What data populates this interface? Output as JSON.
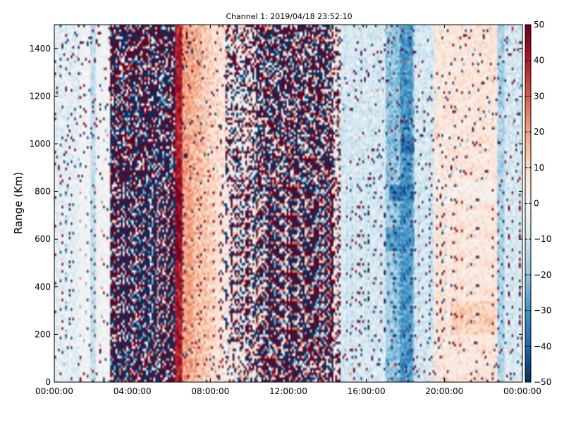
{
  "chart_data": {
    "type": "heatmap",
    "title": "Channel 1: 2019/04/18 23:52:10",
    "xlabel": "",
    "ylabel": "Range (Km)",
    "x_ticks": [
      "00:00:00",
      "04:00:00",
      "08:00:00",
      "12:00:00",
      "16:00:00",
      "20:00:00",
      "00:00:00"
    ],
    "x_range_hours": [
      0,
      24
    ],
    "y_ticks": [
      "0",
      "200",
      "400",
      "600",
      "800",
      "1000",
      "1200",
      "1400"
    ],
    "y_range": [
      0,
      1500
    ],
    "colorbar": {
      "range": [
        -50,
        50
      ],
      "ticks": [
        "50",
        "40",
        "30",
        "20",
        "10",
        "0",
        "−10",
        "−20",
        "−30",
        "−40",
        "−50"
      ],
      "colormap": "RdBu_r"
    },
    "grid": false,
    "regions": [
      {
        "from_h": 0.0,
        "to_h": 1.3,
        "pattern": "pale-blue speckled"
      },
      {
        "from_h": 1.3,
        "to_h": 2.9,
        "pattern": "white with sparse speckle"
      },
      {
        "from_h": 2.9,
        "to_h": 6.2,
        "pattern": "saturated noise"
      },
      {
        "from_h": 6.2,
        "to_h": 6.6,
        "pattern": "strong red band"
      },
      {
        "from_h": 6.6,
        "to_h": 8.8,
        "pattern": "light red fading"
      },
      {
        "from_h": 8.8,
        "to_h": 14.7,
        "pattern": "noisy mixed"
      },
      {
        "from_h": 14.7,
        "to_h": 17.0,
        "pattern": "light blue"
      },
      {
        "from_h": 17.0,
        "to_h": 18.5,
        "pattern": "blue band"
      },
      {
        "from_h": 18.5,
        "to_h": 19.5,
        "pattern": "pale blue"
      },
      {
        "from_h": 19.5,
        "to_h": 22.7,
        "pattern": "pale red speckled"
      },
      {
        "from_h": 22.7,
        "to_h": 24.0,
        "pattern": "pale blue"
      }
    ]
  }
}
